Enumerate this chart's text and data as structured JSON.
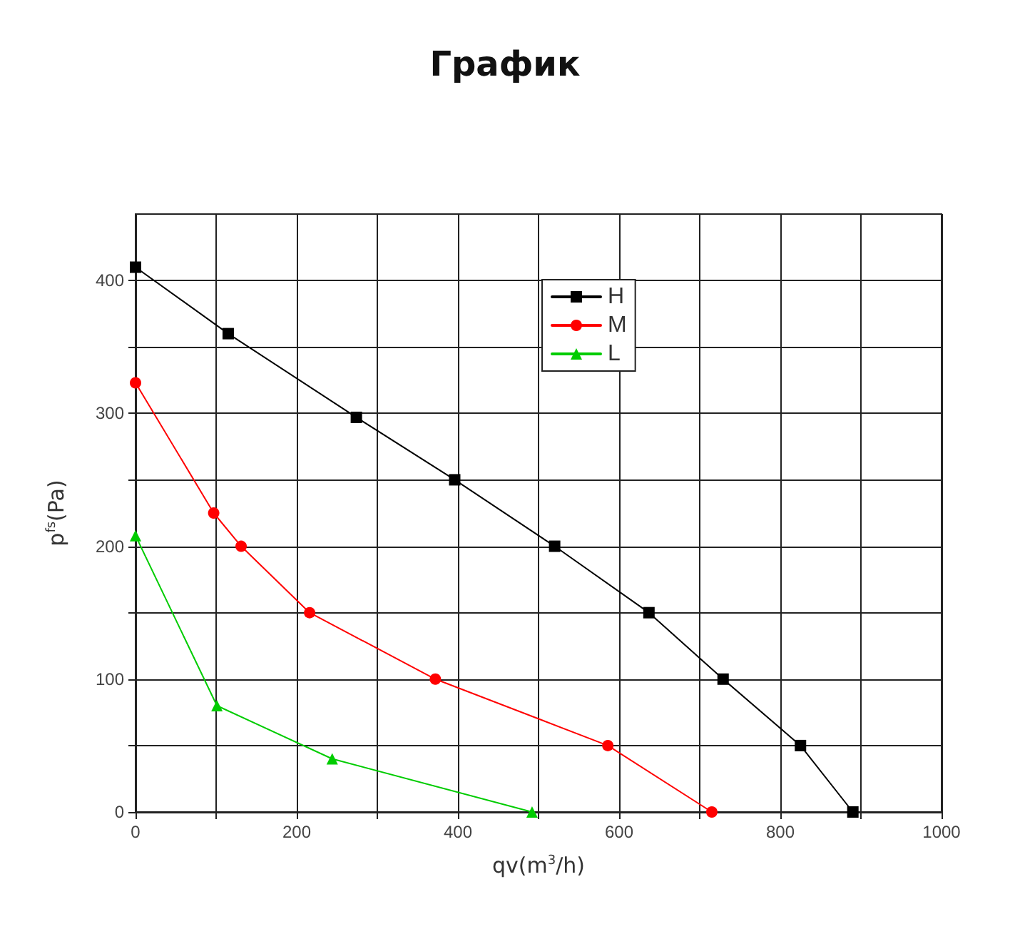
{
  "chart_data": {
    "type": "line",
    "title": "График",
    "xlabel": "qv(m$^{3}$/h)",
    "ylabel": "p$^{fs}$(Pa)",
    "xlim": [
      0,
      1000
    ],
    "xticks": [
      0,
      {
        "value": 100,
        "label": null
      },
      200,
      {
        "value": 300,
        "label": null
      },
      400,
      {
        "value": 500,
        "label": null
      },
      600,
      {
        "value": 700,
        "label": null
      },
      800,
      {
        "value": 900,
        "label": null
      },
      1000
    ],
    "ylim": [
      0,
      450
    ],
    "yticks": [
      0,
      {
        "value": 50,
        "label": null
      },
      100,
      {
        "value": 150,
        "label": null
      },
      200,
      {
        "value": 250,
        "label": null
      },
      300,
      {
        "value": 350,
        "label": null
      },
      400
    ],
    "grid": true,
    "legend": "top right",
    "line_style": "solid",
    "series": [
      {
        "name": "H",
        "color": "#000000",
        "marker": "square",
        "x": [
          0,
          115,
          274,
          396,
          520,
          637,
          729,
          825,
          890
        ],
        "values": [
          410,
          360,
          297,
          250,
          200,
          150,
          100,
          50,
          0
        ]
      },
      {
        "name": "M",
        "color": "#ff0000",
        "marker": "circle",
        "x": [
          0,
          97,
          131,
          216,
          372,
          586,
          715
        ],
        "values": [
          323,
          225,
          200,
          150,
          100,
          50,
          0
        ]
      },
      {
        "name": "L",
        "color": "#00cc00",
        "marker": "triangle",
        "x": [
          0,
          101,
          244,
          492
        ],
        "values": [
          208,
          80,
          40,
          0
        ]
      }
    ]
  }
}
